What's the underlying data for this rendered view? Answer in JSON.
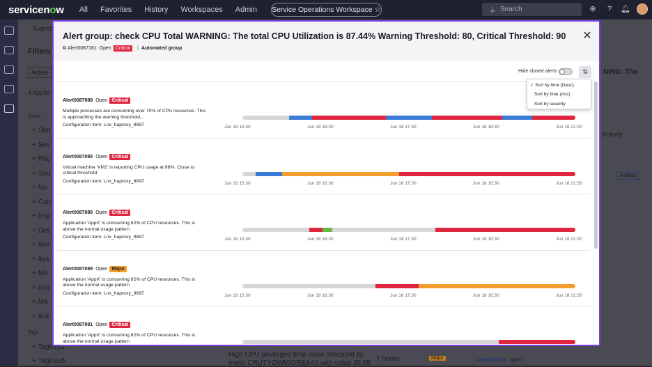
{
  "topbar": {
    "logo_main": "servicen",
    "logo_o": "o",
    "logo_end": "w",
    "nav": [
      "All",
      "Favorites",
      "History",
      "Workspaces",
      "Admin"
    ],
    "workspace": "Service Operations Workspace ☆",
    "search_placeholder": "Search"
  },
  "background": {
    "filters_title": "Filters",
    "active_label": "Active",
    "applied": "4 applie",
    "fields_label": "Fields",
    "tags_label": "Tags",
    "field_items": [
      "Stat",
      "Sev",
      "Pric",
      "Sou",
      "Nu",
      "Con",
      "Imp",
      "Des",
      "Ass",
      "Ass",
      "Me",
      "Gro",
      "Ma",
      "Ack"
    ],
    "tag_items": [
      "TagKey2",
      "TagKey5"
    ],
    "express": "Expres",
    "right_title1": "NING: The",
    "right_activity": "Activity",
    "analyze": "Analyze",
    "bottom_text1": "High CPU privileged time issue indicated by",
    "bottom_text2": "event CRUTYOWMIDREA40 with value 35.85",
    "bottom_hours": "7 hours",
    "bottom_major": "Major",
    "bottom_alert": "Alert0010003",
    "bottom_open": "Open"
  },
  "modal": {
    "title": "Alert group: check CPU Total WARNING: The total CPU Utilization is 87.44% Warning Threshold: 80, Critical Threshold: 90",
    "alert_id": "Alert0087181",
    "status": "Open",
    "severity": "Critical",
    "group_type": "Automated group",
    "hide_closed": "Hide closed alerts",
    "sort_options": [
      "Sort by time (Desc)",
      "Sort by time (Asc)",
      "Sort by severity"
    ],
    "sort_selected": "Sort by time (Desc)",
    "colors": {
      "critical": "#e0263f",
      "major": "#f29d2d",
      "minor": "#3a7bd5",
      "ok": "#6bb84a",
      "idle": "#d6d6d9"
    },
    "tick_labels": [
      "Jun 18 15:30",
      "Jun 18 16:30",
      "Jun 18 17:30",
      "Jun 18 18:30",
      "Jun 18 21:30"
    ],
    "alerts": [
      {
        "id": "Alert0087088",
        "status": "Open",
        "severity": "Critical",
        "desc": "Multiple processes are consuming over 70% of CPU resources. This is approaching the warning threshold...",
        "ci": "Configuration item: Lnx_haproxy_9897",
        "segments": [
          [
            0.14,
            0.21,
            "minor"
          ],
          [
            0.21,
            0.43,
            "critical"
          ],
          [
            0.43,
            0.57,
            "minor"
          ],
          [
            0.57,
            0.78,
            "critical"
          ],
          [
            0.78,
            0.87,
            "minor"
          ],
          [
            0.87,
            1.0,
            "critical"
          ]
        ]
      },
      {
        "id": "Alert0087085",
        "status": "Open",
        "severity": "Critical",
        "desc": "Virtual machine 'VM1' is reporting CPU usage at 88%. Close to critical threshold",
        "ci": "Configuration item: Lnx_haproxy_9897",
        "segments": [
          [
            0.04,
            0.12,
            "minor"
          ],
          [
            0.12,
            0.47,
            "major"
          ],
          [
            0.47,
            1.0,
            "critical"
          ]
        ]
      },
      {
        "id": "Alert0087086",
        "status": "Open",
        "severity": "Critical",
        "desc": "Application 'AppX' is consuming 82% of CPU resources. This is above the normal usage pattern",
        "ci": "Configuration item: Lnx_haproxy_9897",
        "segments": [
          [
            0.2,
            0.24,
            "critical"
          ],
          [
            0.24,
            0.27,
            "ok"
          ],
          [
            0.58,
            1.0,
            "critical"
          ]
        ]
      },
      {
        "id": "Alert0087089",
        "status": "Open",
        "severity": "Major",
        "desc": "Application 'AppX' is consuming 82% of CPU resources. This is above the normal usage pattern",
        "ci": "Configuration item: Lnx_haproxy_9897",
        "segments": [
          [
            0.4,
            0.53,
            "critical"
          ],
          [
            0.53,
            1.0,
            "major"
          ]
        ]
      },
      {
        "id": "Alert0087081",
        "status": "Open",
        "severity": "Critical",
        "desc": "Application 'AppX' is consuming 82% of CPU resources. This is above the normal usage pattern",
        "ci": "",
        "segments": [
          [
            0.77,
            1.0,
            "critical"
          ]
        ]
      }
    ]
  }
}
